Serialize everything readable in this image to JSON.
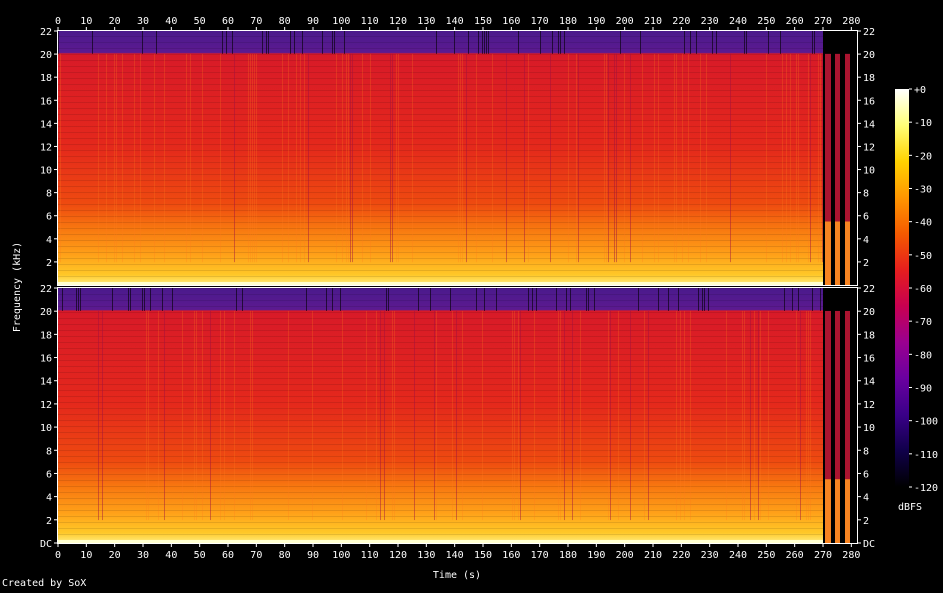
{
  "chart_data": {
    "type": "heatmap",
    "subtype": "spectrogram",
    "title": "",
    "xlabel": "Time (s)",
    "ylabel": "Frequency (kHz)",
    "xlim": [
      0,
      282
    ],
    "ylim": [
      0,
      22
    ],
    "x_ticks": [
      "0",
      "10",
      "20",
      "30",
      "40",
      "50",
      "60",
      "70",
      "80",
      "90",
      "100",
      "110",
      "120",
      "130",
      "140",
      "150",
      "160",
      "170",
      "180",
      "190",
      "200",
      "210",
      "220",
      "230",
      "240",
      "250",
      "260",
      "270",
      "280"
    ],
    "y_ticks": [
      "DC",
      "2",
      "4",
      "6",
      "8",
      "10",
      "12",
      "14",
      "16",
      "18",
      "20",
      "22"
    ],
    "y_ticks_inner": [
      "2",
      "4",
      "6",
      "8",
      "10",
      "12",
      "14",
      "16",
      "18",
      "20",
      "22"
    ],
    "channels": 2,
    "colorbar": {
      "label": "dBFS",
      "range": [
        -120,
        0
      ],
      "ticks": [
        "+0",
        "-10",
        "-20",
        "-30",
        "-40",
        "-50",
        "-60",
        "-70",
        "-80",
        "-90",
        "-100",
        "-110",
        "-120"
      ],
      "colormap": [
        "#000000",
        "#10004a",
        "#3a0088",
        "#6a00a0",
        "#9a0090",
        "#c80050",
        "#e61e1e",
        "#f55a00",
        "#ff9600",
        "#ffd200",
        "#ffff78",
        "#ffffff"
      ]
    },
    "colors": {
      "cutoff_band": "#4a1a8c",
      "body": "#e8301a",
      "low_freq": "#ffc020",
      "dc_line": "#ffffd0"
    },
    "notes": {
      "lowpass_cutoff_khz": 20,
      "music_end_s": 270
    }
  },
  "footer": {
    "credit": "Created by SoX"
  }
}
